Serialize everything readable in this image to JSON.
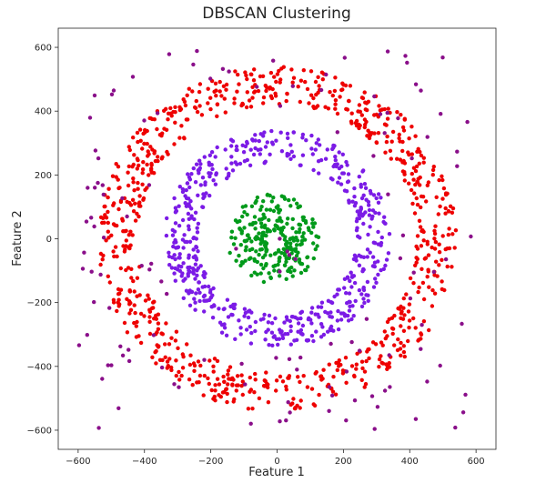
{
  "chart_data": {
    "type": "scatter",
    "title": "DBSCAN Clustering",
    "xlabel": "Feature 1",
    "ylabel": "Feature 2",
    "xlim": [
      -660,
      660
    ],
    "ylim": [
      -660,
      660
    ],
    "xticks": [
      -600,
      -400,
      -200,
      0,
      200,
      400,
      600
    ],
    "yticks": [
      -600,
      -400,
      -200,
      0,
      200,
      400,
      600
    ],
    "grid": false,
    "legend": "none",
    "series": [
      {
        "color": "#ee0000",
        "shape": "ring",
        "center": [
          0,
          0
        ],
        "radius_range": [
          420,
          540
        ],
        "approx_count": 800
      },
      {
        "color": "#7b1be6",
        "shape": "ring",
        "center": [
          0,
          0
        ],
        "radius_range": [
          240,
          340
        ],
        "approx_count": 560
      },
      {
        "color": "#009a1a",
        "shape": "ring",
        "center": [
          -10,
          0
        ],
        "radius_range": [
          25,
          140
        ],
        "approx_count": 260
      },
      {
        "color": "#8a0f8a",
        "shape": "noise",
        "x_range": [
          -600,
          590
        ],
        "y_range": [
          -600,
          600
        ],
        "approx_count": 130
      }
    ]
  }
}
